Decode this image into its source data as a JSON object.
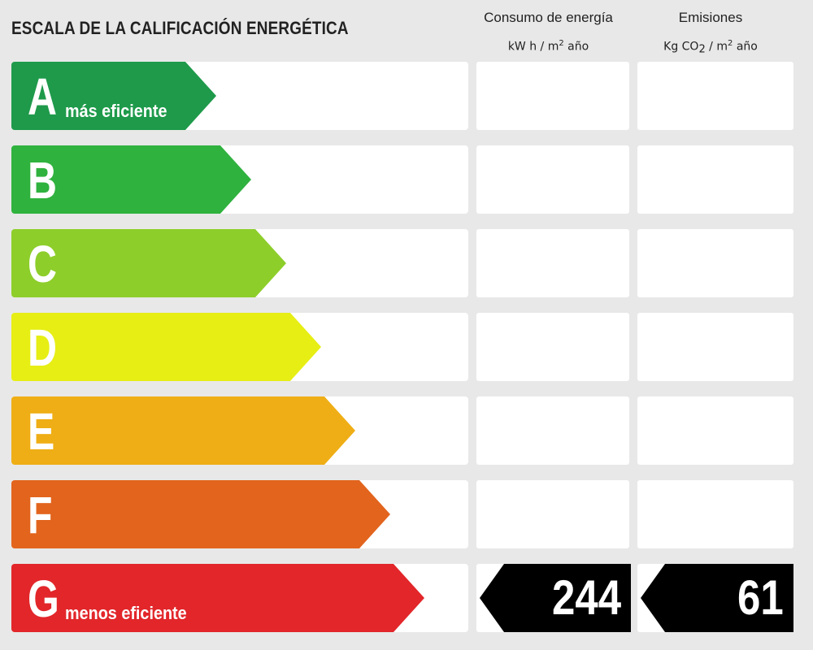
{
  "header": {
    "title": "ESCALA DE LA CALIFICACIÓN ENERGÉTICA",
    "energy": {
      "label": "Consumo de energía",
      "unit_pre": "kW h / m",
      "unit_sup": "2",
      "unit_post": " año"
    },
    "emissions": {
      "label": "Emisiones",
      "unit_pre": "Kg CO",
      "unit_sub": "2",
      "unit_mid": " / m",
      "unit_sup": "2",
      "unit_post": "  año"
    }
  },
  "ratings": [
    {
      "letter": "A",
      "description": "más eficiente",
      "color": "#1e9a4a"
    },
    {
      "letter": "B",
      "description": "",
      "color": "#2fb23e"
    },
    {
      "letter": "C",
      "description": "",
      "color": "#8dce2a"
    },
    {
      "letter": "D",
      "description": "",
      "color": "#e6ee14"
    },
    {
      "letter": "E",
      "description": "",
      "color": "#efae15"
    },
    {
      "letter": "F",
      "description": "",
      "color": "#e2641d"
    },
    {
      "letter": "G",
      "description": "menos eficiente",
      "color": "#e2262a"
    }
  ],
  "result": {
    "rating": "G",
    "energy_value": "244",
    "emissions_value": "61"
  }
}
